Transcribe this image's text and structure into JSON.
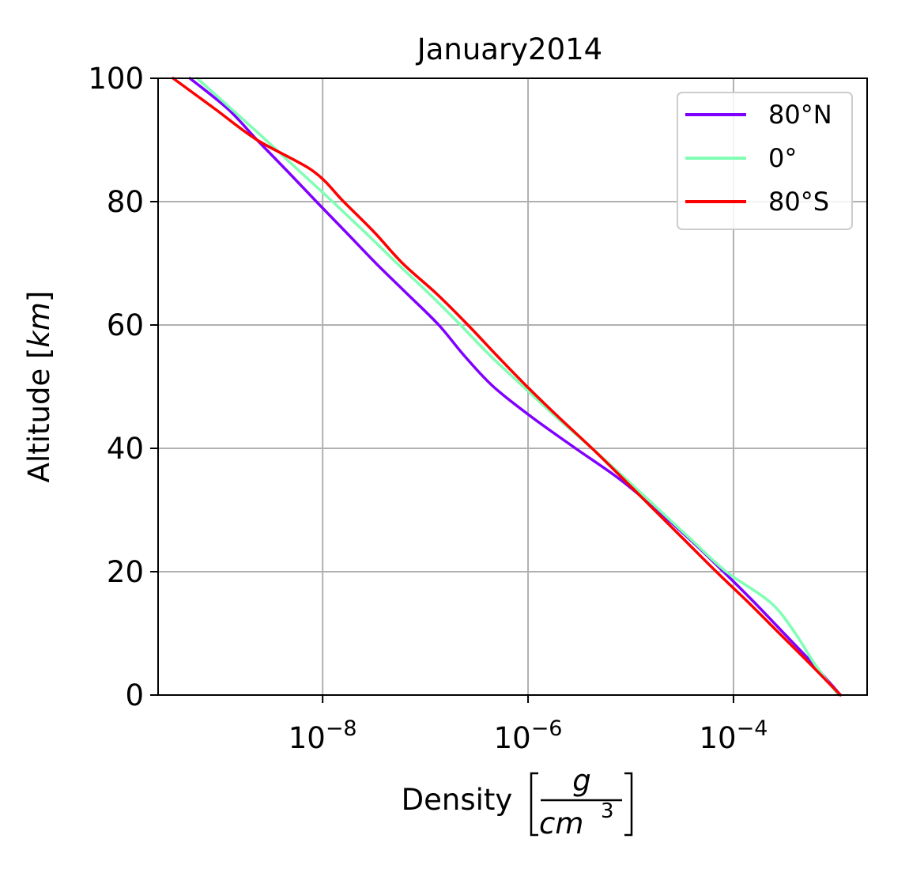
{
  "chart_data": {
    "type": "line",
    "title": "January2014",
    "xlabel": "Density",
    "xlabel_unit": {
      "numerator": "g",
      "denominator_base": "cm",
      "denominator_exponent": "3"
    },
    "ylabel": "Altitude",
    "ylabel_unit": "km",
    "x_scale": "log",
    "xlim": [
      2.5e-10,
      0.002
    ],
    "ylim": [
      0,
      100
    ],
    "x_ticks": [
      {
        "base": "10",
        "exponent": "−8",
        "value": 1e-08
      },
      {
        "base": "10",
        "exponent": "−6",
        "value": 1e-06
      },
      {
        "base": "10",
        "exponent": "−4",
        "value": 0.0001
      }
    ],
    "y_ticks": [
      "0",
      "20",
      "40",
      "60",
      "80",
      "100"
    ],
    "y_tick_values": [
      0,
      20,
      40,
      60,
      80,
      100
    ],
    "grid": true,
    "legend": {
      "placement": "top-right"
    },
    "series": [
      {
        "name": "80°N",
        "color": "#8000ff",
        "altitude": [
          0,
          5,
          10,
          15,
          20,
          25,
          30,
          35,
          40,
          45,
          50,
          55,
          60,
          65,
          70,
          75,
          80,
          85,
          90,
          95,
          100
        ],
        "density": [
          0.0011,
          0.0006,
          0.00031,
          0.00016,
          8e-05,
          3.9e-05,
          1.8e-05,
          7.8e-06,
          2.9e-06,
          1.1e-06,
          4.6e-07,
          2.4e-07,
          1.35e-07,
          6.7e-08,
          3.3e-08,
          1.7e-08,
          8.7e-09,
          4.5e-09,
          2.3e-09,
          1.2e-09,
          5.1e-10
        ]
      },
      {
        "name": "0°",
        "color": "#80ffb4",
        "altitude": [
          0,
          5,
          10,
          15,
          20,
          25,
          30,
          35,
          40,
          45,
          50,
          55,
          60,
          65,
          70,
          75,
          80,
          85,
          90,
          95,
          100
        ],
        "density": [
          0.00105,
          0.00062,
          0.0004,
          0.00023,
          8.5e-05,
          4e-05,
          1.9e-05,
          9e-06,
          4.2e-06,
          1.9e-06,
          9e-07,
          4.3e-07,
          2.2e-07,
          1.1e-07,
          5.3e-08,
          2.6e-08,
          1.25e-08,
          5.9e-09,
          2.8e-09,
          1.3e-09,
          6e-10
        ]
      },
      {
        "name": "80°S",
        "color": "#ff0000",
        "altitude": [
          0,
          5,
          10,
          15,
          20,
          25,
          30,
          35,
          40,
          45,
          50,
          55,
          60,
          65,
          70,
          75,
          80,
          85,
          90,
          95,
          100
        ],
        "density": [
          0.0011,
          0.00056,
          0.00028,
          0.00014,
          6.8e-05,
          3.4e-05,
          1.7e-05,
          8.5e-06,
          4.2e-06,
          2e-06,
          9.8e-07,
          5e-07,
          2.6e-07,
          1.3e-07,
          6e-08,
          3.2e-08,
          1.6e-08,
          8e-09,
          2.3e-09,
          9e-10,
          3.5e-10
        ]
      }
    ]
  }
}
